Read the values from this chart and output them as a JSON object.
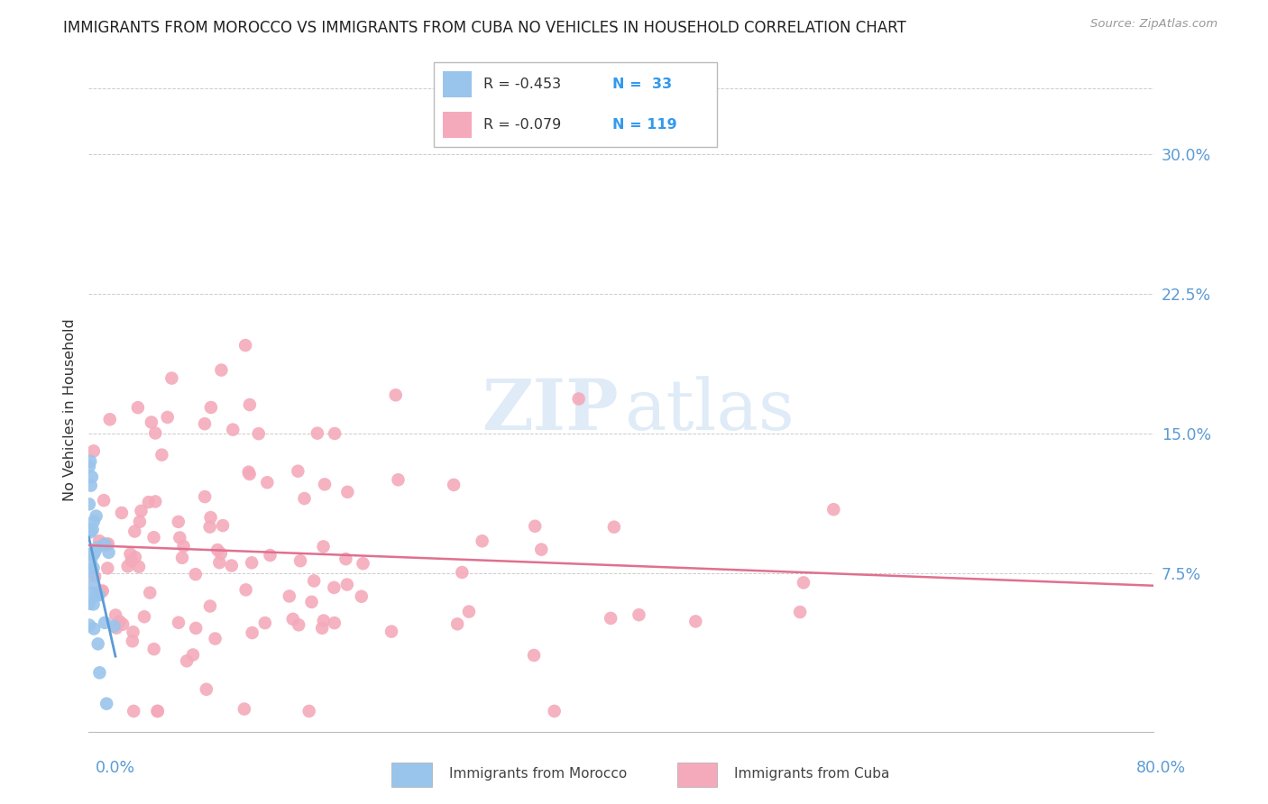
{
  "title": "IMMIGRANTS FROM MOROCCO VS IMMIGRANTS FROM CUBA NO VEHICLES IN HOUSEHOLD CORRELATION CHART",
  "source": "Source: ZipAtlas.com",
  "ylabel": "No Vehicles in Household",
  "ytick_labels": [
    "7.5%",
    "15.0%",
    "22.5%",
    "30.0%"
  ],
  "ytick_values": [
    0.075,
    0.15,
    0.225,
    0.3
  ],
  "xlim": [
    0.0,
    0.8
  ],
  "ylim": [
    -0.01,
    0.335
  ],
  "legend_r_morocco": "R = -0.453",
  "legend_n_morocco": "N =  33",
  "legend_r_cuba": "R = -0.079",
  "legend_n_cuba": "N = 119",
  "color_morocco": "#99C4EC",
  "color_cuba": "#F4AABB",
  "color_blue": "#5B9BD5",
  "color_pink": "#E07090",
  "color_axis": "#5B9BD5",
  "color_n": "#3399EE",
  "background": "#FFFFFF"
}
